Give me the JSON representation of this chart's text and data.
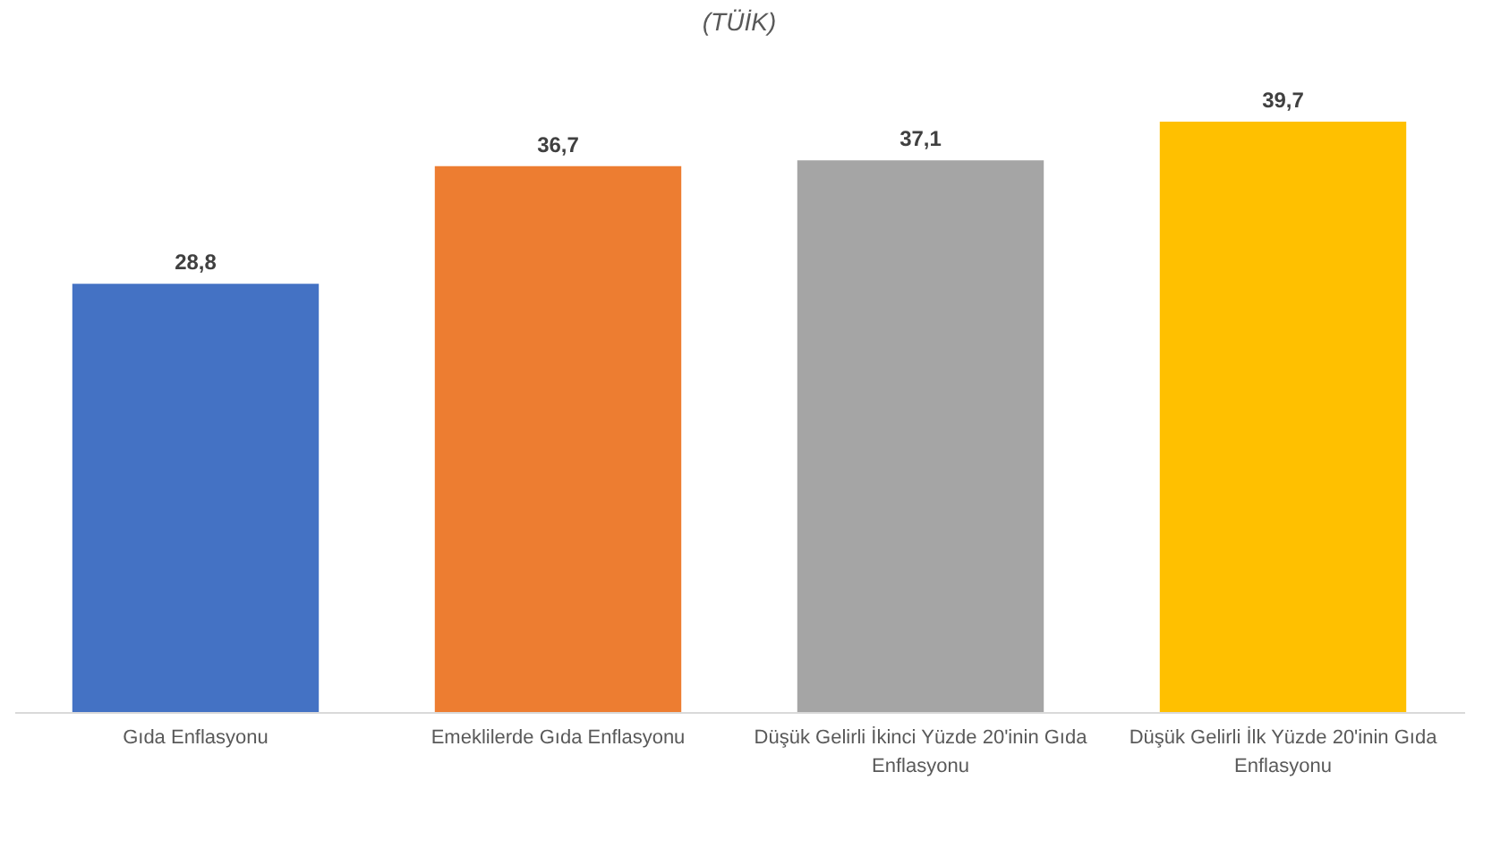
{
  "chart_data": {
    "type": "bar",
    "subtitle": "(TÜİK)",
    "categories": [
      "Gıda Enflasyonu",
      "Emeklilerde Gıda Enflasyonu",
      "Düşük Gelirli İkinci Yüzde 20'inin Gıda Enflasyonu",
      "Düşük Gelirli İlk Yüzde 20'inin Gıda Enflasyonu"
    ],
    "values": [
      28.8,
      36.7,
      37.1,
      39.7
    ],
    "value_labels": [
      "28,8",
      "36,7",
      "37,1",
      "39,7"
    ],
    "colors": [
      "#4472c4",
      "#ed7d31",
      "#a5a5a5",
      "#ffc000"
    ]
  }
}
